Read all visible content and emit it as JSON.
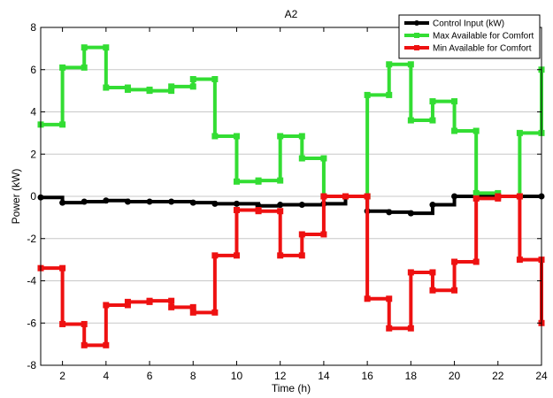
{
  "chart_data": {
    "type": "line",
    "title": "A2",
    "xlabel": "Time (h)",
    "ylabel": "Power (kW)",
    "xlim": [
      1,
      24
    ],
    "ylim": [
      -8,
      8
    ],
    "grid": true,
    "legend_position": "top-right",
    "xticks": [
      2,
      4,
      6,
      8,
      10,
      12,
      14,
      16,
      18,
      20,
      22,
      24
    ],
    "yticks": [
      -8,
      -6,
      -4,
      -2,
      0,
      2,
      4,
      6,
      8
    ],
    "x": [
      1,
      2,
      3,
      4,
      5,
      6,
      7,
      8,
      9,
      10,
      11,
      12,
      13,
      14,
      15,
      16,
      17,
      18,
      19,
      20,
      21,
      22,
      23,
      24
    ],
    "series": [
      {
        "name": "Control Input (kW)",
        "color": "#000000",
        "values": [
          -0.05,
          -0.3,
          -0.25,
          -0.2,
          -0.25,
          -0.25,
          -0.25,
          -0.3,
          -0.35,
          -0.35,
          -0.45,
          -0.4,
          -0.4,
          -0.35,
          0,
          -0.7,
          -0.75,
          -0.8,
          -0.4,
          0,
          0,
          0,
          0,
          0
        ]
      },
      {
        "name": "Max Available for Comfort",
        "color": "#33dd33",
        "values": [
          3.4,
          6.1,
          7.05,
          5.15,
          5.05,
          5.0,
          5.2,
          5.55,
          2.85,
          0.7,
          0.75,
          2.85,
          1.8,
          0,
          0,
          4.8,
          6.25,
          3.6,
          4.5,
          3.1,
          0.15,
          0,
          3.0,
          6.0
        ]
      },
      {
        "name": "Min Available for Comfort",
        "color": "#ee1111",
        "values": [
          -3.4,
          -6.05,
          -7.05,
          -5.15,
          -5.0,
          -4.95,
          -5.25,
          -5.5,
          -2.8,
          -0.65,
          -0.7,
          -2.8,
          -1.8,
          0,
          0,
          -4.85,
          -6.25,
          -3.6,
          -4.45,
          -3.1,
          -0.1,
          0,
          -3.0,
          -6.0
        ]
      }
    ]
  }
}
